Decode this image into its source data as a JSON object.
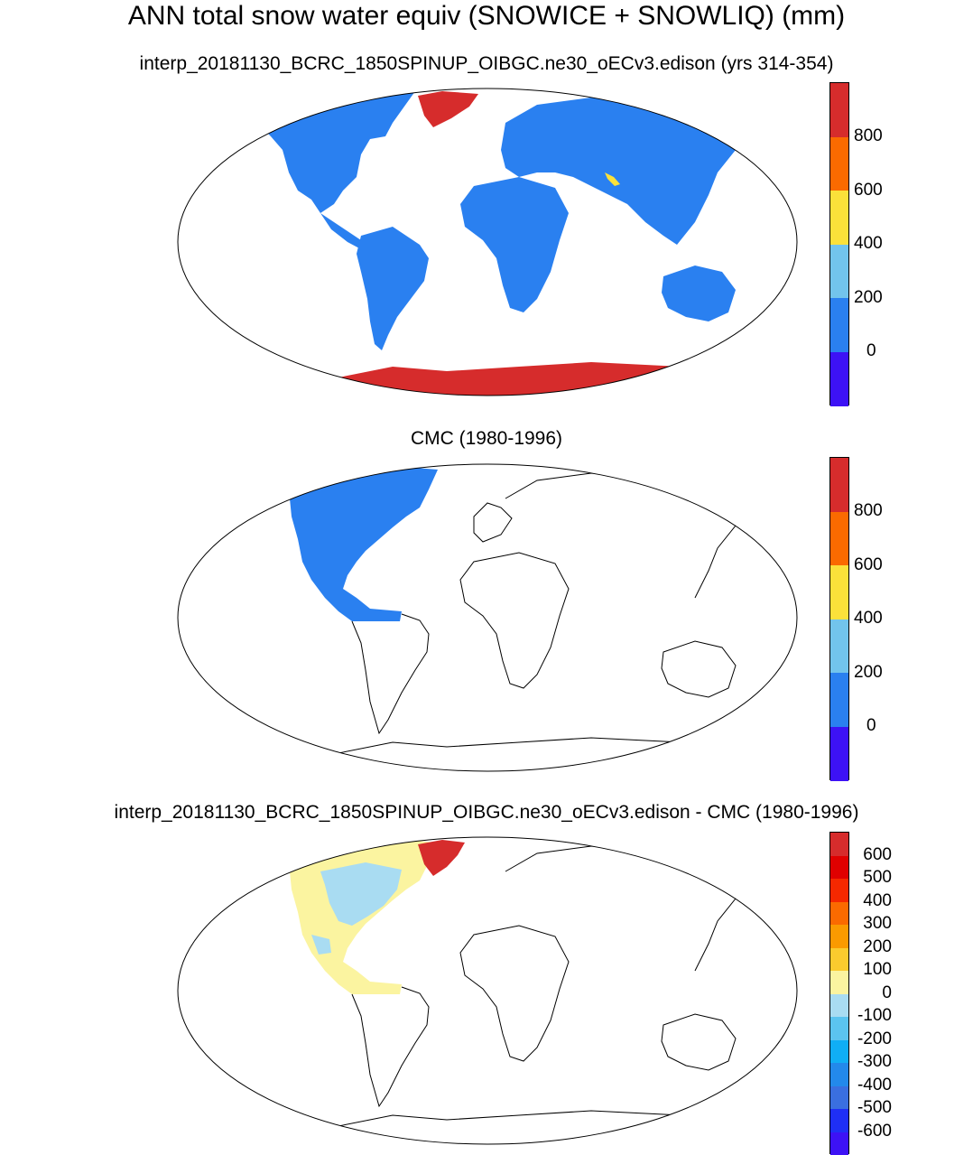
{
  "title": "ANN total snow water equiv (SNOWICE + SNOWLIQ) (mm)",
  "panels": [
    {
      "subtitle": "interp_20181130_BCRC_1850SPINUP_OIBGC.ne30_oECv3.edison (yrs 314-354)",
      "colorbar": {
        "colors": [
          "#3d12f5",
          "#2a80f0",
          "#72c4ec",
          "#fbe13a",
          "#fb6a00",
          "#d62c2c"
        ],
        "ticks": [
          "0",
          "200",
          "400",
          "600",
          "800"
        ]
      }
    },
    {
      "subtitle": "CMC (1980-1996)",
      "colorbar": {
        "colors": [
          "#3d12f5",
          "#2a80f0",
          "#72c4ec",
          "#fbe13a",
          "#fb6a00",
          "#d62c2c"
        ],
        "ticks": [
          "0",
          "200",
          "400",
          "600",
          "800"
        ]
      }
    },
    {
      "subtitle": "interp_20181130_BCRC_1850SPINUP_OIBGC.ne30_oECv3.edison - CMC (1980-1996)",
      "colorbar": {
        "colors": [
          "#3d12f5",
          "#1f2ff5",
          "#3a6fe0",
          "#2389eb",
          "#10aef5",
          "#5bc4f0",
          "#a9dcf2",
          "#fbf4a0",
          "#fbcb2e",
          "#fb9a00",
          "#fb6a00",
          "#f52800",
          "#e00000",
          "#d62c2c"
        ],
        "ticks": [
          "600",
          "500",
          "400",
          "300",
          "200",
          "100",
          "0",
          "-100",
          "-200",
          "-300",
          "-400",
          "-500",
          "-600"
        ]
      }
    }
  ],
  "colors": {
    "land_snow": "#2a80f0",
    "high_snow": "#d62c2c",
    "diff_positive": "#fbf4a0",
    "diff_negative": "#a9dcf2",
    "coast": "#000000"
  }
}
